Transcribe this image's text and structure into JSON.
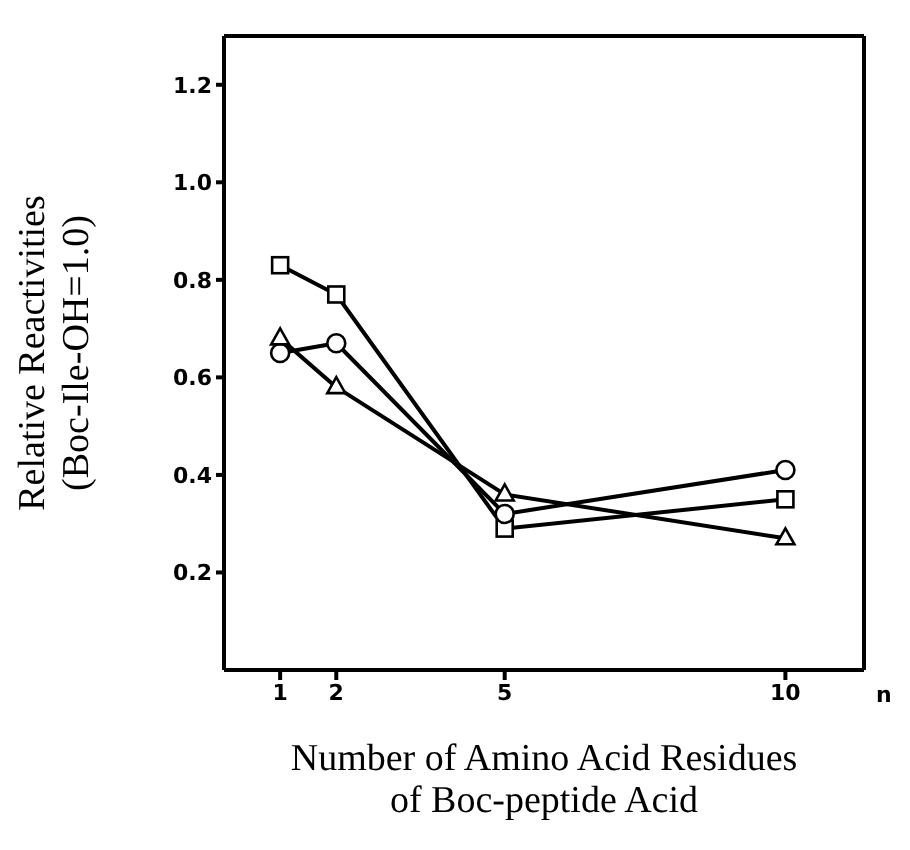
{
  "chart_data": {
    "type": "line",
    "xlabel": "Number of Amino Acid Residues\nof Boc-peptide Acid",
    "ylabel": "Relative Reactivities\n(Boc-Ile-OH=1.0)",
    "annotations": [
      "n"
    ],
    "x": [
      1,
      2,
      5,
      10
    ],
    "series": [
      {
        "color": "#000000",
        "marker": "square",
        "values": [
          0.83,
          0.77,
          0.29,
          0.35
        ]
      },
      {
        "color": "#000000",
        "marker": "circle",
        "values": [
          0.65,
          0.67,
          0.32,
          0.41
        ]
      },
      {
        "color": "#000000",
        "marker": "triangle",
        "values": [
          0.68,
          0.58,
          0.36,
          0.27
        ]
      }
    ],
    "xlim": [
      0,
      11.4
    ],
    "xticks": [
      1,
      2,
      5,
      10
    ],
    "ylim": [
      0,
      1.3
    ],
    "yticks": [
      0.2,
      0.4,
      0.6,
      0.8,
      {
        "value": 1,
        "label": "1.0"
      },
      1.2
    ],
    "grid": false,
    "legend": false,
    "line_style": "solid"
  }
}
